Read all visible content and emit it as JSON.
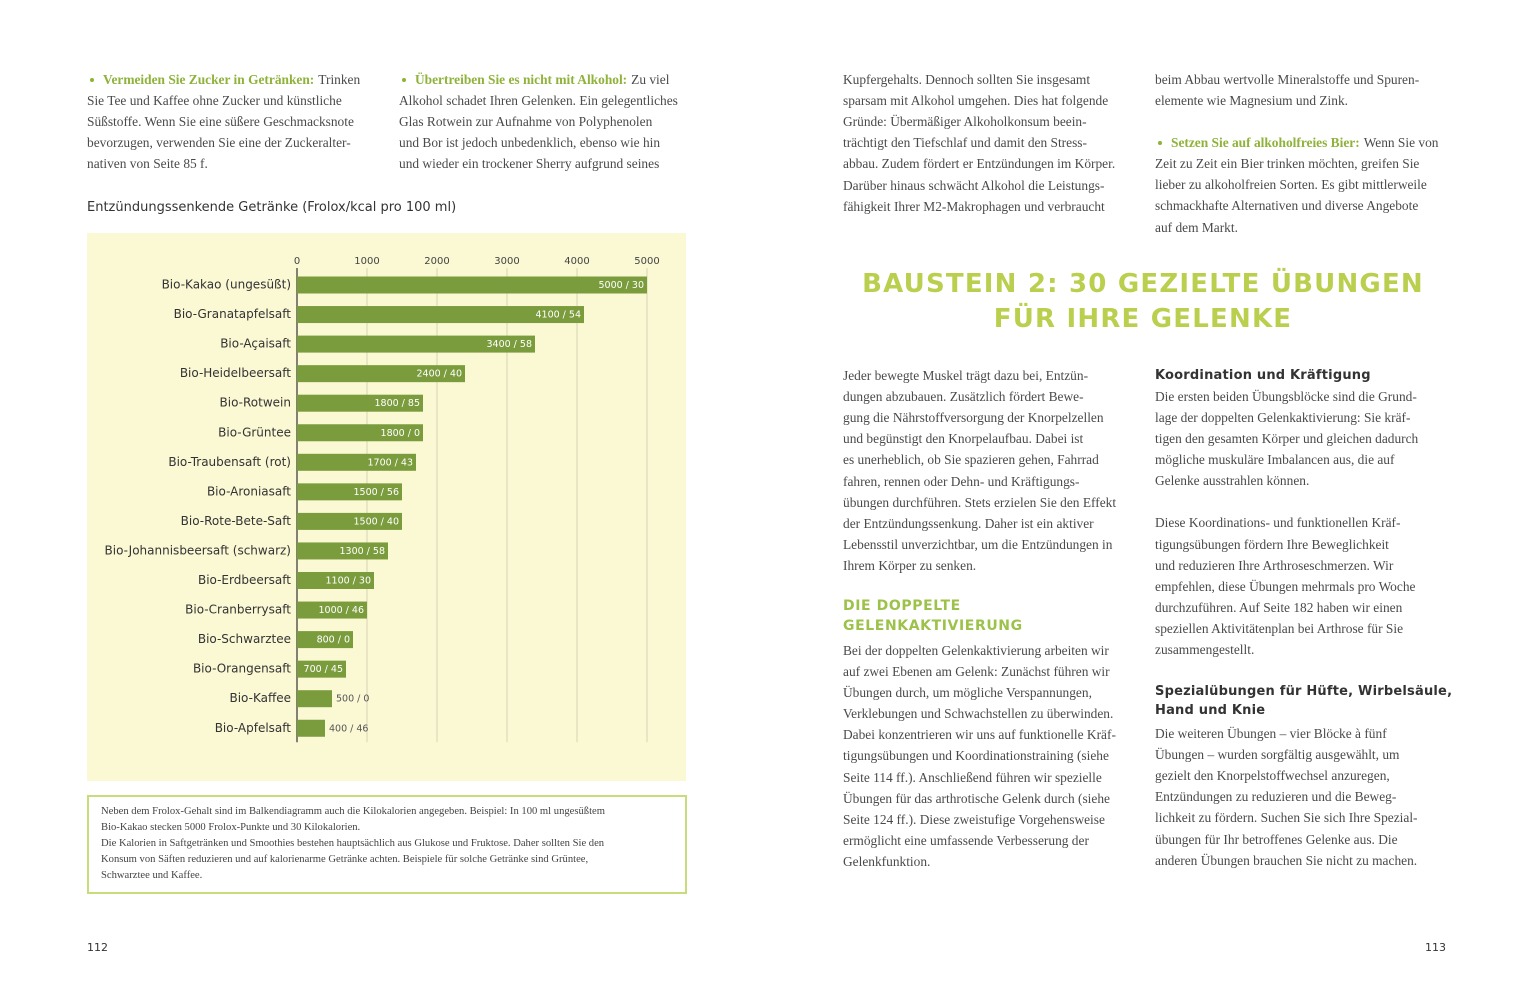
{
  "left_page": {
    "columns": [
      [
        {
          "lead": "Vermeiden Sie Zucker in Getränken:",
          "lines": [
            "Trinken",
            "Sie Tee und Kaffee ohne Zucker und künstliche",
            "Süßstoffe. Wenn Sie eine süßere Geschmacksnote",
            "bevorzugen, verwenden Sie eine der Zuckeralter-",
            "nativen von Seite 85 f."
          ]
        }
      ],
      [
        {
          "lead": "Übertreiben Sie es nicht mit Alkohol:",
          "lines": [
            "Zu viel",
            "Alkohol schadet Ihren Gelenken. Ein gelegentliches",
            "Glas Rotwein zur Aufnahme von Polyphenolen",
            "und Bor ist jedoch unbedenklich, ebenso wie hin",
            "und wieder ein trockener Sherry aufgrund seines"
          ]
        }
      ]
    ],
    "note": [
      "Neben dem Frolox-Gehalt sind im Balkendiagramm auch die Kilokalorien angegeben. Beispiel: In 100 ml ungesüßtem",
      "Bio-Kakao stecken 5000 Frolox-Punkte und 30 Kilokalorien.",
      "Die Kalorien in Saftgetränken und Smoothies bestehen hauptsächlich aus Glukose und Fruktose. Daher sollten Sie den",
      "Konsum von Säften reduzieren und auf kalorienarme Getränke achten. Beispiele für solche Getränke sind Grüntee,",
      "Schwarztee und Kaffee."
    ],
    "page_number": "112"
  },
  "chart_data": {
    "type": "bar",
    "orientation": "horizontal",
    "title": "Entzündungssenkende Getränke (Frolox/kcal pro 100 ml)",
    "categories": [
      "Bio-Kakao (ungesüßt)",
      "Bio-Granatapfelsaft",
      "Bio-Açaisaft",
      "Bio-Heidelbeersaft",
      "Bio-Rotwein",
      "Bio-Grüntee",
      "Bio-Traubensaft (rot)",
      "Bio-Aroniasaft",
      "Bio-Rote-Bete-Saft",
      "Bio-Johannisbeersaft (schwarz)",
      "Bio-Erdbeersaft",
      "Bio-Cranberrysaft",
      "Bio-Schwarztee",
      "Bio-Orangensaft",
      "Bio-Kaffee",
      "Bio-Apfelsaft"
    ],
    "values": [
      5000,
      4100,
      3400,
      2400,
      1800,
      1800,
      1700,
      1500,
      1500,
      1300,
      1100,
      1000,
      800,
      700,
      500,
      400
    ],
    "value_labels": [
      "5000 / 30",
      "4100 / 54",
      "3400 / 58",
      "2400 / 40",
      "1800 / 85",
      "1800 / 0",
      "1700 / 43",
      "1500 / 56",
      "1500 / 40",
      "1300 / 58",
      "1100 / 30",
      "1000 / 46",
      "800 / 0",
      "700 / 45",
      "500 / 0",
      "400 / 46"
    ],
    "color": "#7b9c3d",
    "xlim": [
      0,
      5000
    ],
    "xticks": [
      0,
      1000,
      2000,
      3000,
      4000,
      5000
    ],
    "grid": true
  },
  "right_page": {
    "columns": [
      [
        {
          "lines": [
            "Kupfergehalts. Dennoch sollten Sie insgesamt",
            "sparsam mit Alkohol umgehen. Dies hat folgende",
            "Gründe: Übermäßiger Alkoholkonsum beein-",
            "trächtigt den Tiefschlaf und damit den Stress-",
            "abbau. Zudem fördert er Entzündungen im Körper.",
            "Darüber hinaus schwächt Alkohol die Leistungs-",
            "fähigkeit Ihrer M2-Makrophagen und verbraucht"
          ]
        }
      ],
      [
        {
          "lines": [
            "beim Abbau wertvolle Mineralstoffe und Spuren-",
            "elemente wie Magnesium und Zink."
          ]
        },
        {
          "lead": "Setzen Sie auf alkoholfreies Bier:",
          "lines": [
            "Wenn Sie von",
            "Zeit zu Zeit ein Bier trinken möchten, greifen Sie",
            "lieber zu alkoholfreien Sorten. Es gibt mittlerweile",
            "schmackhafte Alternativen und diverse Angebote",
            "auf dem Markt."
          ]
        }
      ]
    ],
    "heading": [
      "BAUSTEIN 2: 30 GEZIELTE ÜBUNGEN",
      "FÜR IHRE GELENKE"
    ],
    "sections": [
      [
        {
          "lines": [
            "Jeder bewegte Muskel trägt dazu bei, Entzün-",
            "dungen abzubauen. Zusätzlich fördert Bewe-",
            "gung die Nährstoffversorgung der Knorpelzellen",
            "und begünstigt den Knorpelaufbau. Dabei ist",
            "es unerheblich, ob Sie spazieren gehen, Fahrrad",
            "fahren, rennen oder Dehn- und Kräftigungs-",
            "übungen durchführen. Stets erzielen Sie den Effekt",
            "der Entzündungssenkung. Daher ist ein aktiver",
            "Lebensstil unverzichtbar, um die Entzündungen in",
            "Ihrem Körper zu senken."
          ]
        },
        {
          "subheading": [
            "DIE DOPPELTE",
            "GELENKAKTIVIERUNG"
          ]
        },
        {
          "lines": [
            "Bei der doppelten Gelenkaktivierung arbeiten wir",
            "auf zwei Ebenen am Gelenk: Zunächst führen wir",
            "Übungen durch, um mögliche Verspannungen,",
            "Verklebungen und Schwachstellen zu überwinden.",
            "Dabei konzentrieren wir uns auf funktionelle Kräf-",
            "tigungsübungen und Koordinationstraining (siehe",
            "Seite 114 ff.). Anschließend führen wir spezielle",
            "Übungen für das arthrotische Gelenk durch (siehe",
            "Seite 124 ff.). Diese zweistufige Vorgehensweise",
            "ermöglicht eine umfassende Verbesserung der",
            "Gelenkfunktion."
          ]
        }
      ],
      [
        {
          "heading": [
            "Koordination und Kräftigung"
          ]
        },
        {
          "lines": [
            "Die ersten beiden Übungsblöcke sind die Grund-",
            "lage der doppelten Gelenkaktivierung: Sie kräf-",
            "tigen den gesamten Körper und gleichen dadurch",
            "mögliche muskuläre Imbalancen aus, die auf",
            "Gelenke ausstrahlen können."
          ]
        },
        {
          "lines": [
            "Diese Koordinations- und funktionellen Kräf-",
            "tigungsübungen fördern Ihre Beweglichkeit",
            "und reduzieren Ihre Arthroseschmerzen. Wir",
            "empfehlen, diese Übungen mehrmals pro Woche",
            "durchzuführen. Auf Seite 182 haben wir einen",
            "speziellen Aktivitätenplan bei Arthrose für Sie",
            "zusammengestellt."
          ]
        },
        {
          "heading": [
            "Spezialübungen für Hüfte, Wirbelsäule,",
            "Hand und Knie"
          ]
        },
        {
          "lines": [
            "Die weiteren Übungen – vier Blöcke à fünf",
            "Übungen – wurden sorgfältig ausgewählt, um",
            "gezielt den Knorpelstoffwechsel anzuregen,",
            "Entzündungen zu reduzieren und die Beweg-",
            "lichkeit zu fördern. Suchen Sie sich Ihre Spezial-",
            "übungen für Ihr betroffenes Gelenke aus. Die",
            "anderen Übungen brauchen Sie nicht zu machen."
          ]
        }
      ]
    ],
    "page_number": "113"
  }
}
